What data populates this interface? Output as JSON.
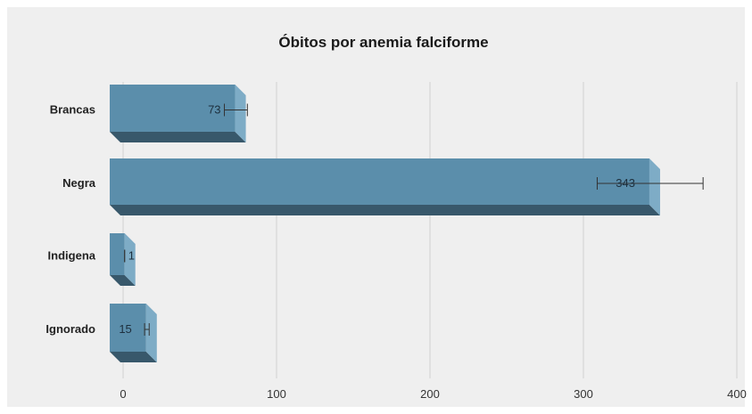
{
  "chart_data": {
    "type": "bar",
    "orientation": "horizontal",
    "title": "Óbitos por anemia falciforme",
    "xlabel": "",
    "ylabel": "",
    "categories": [
      "Brancas",
      "Negra",
      "Indigena",
      "Ignorado"
    ],
    "values": [
      73,
      343,
      1,
      15
    ],
    "error_high": [
      81,
      378,
      1,
      17
    ],
    "error_low": [
      66,
      309,
      1,
      14
    ],
    "xlim": [
      0,
      400
    ],
    "xticks": [
      0,
      100,
      200,
      300,
      400
    ],
    "grid": true,
    "legend": "none",
    "colors": {
      "bar_front": "#5b8eab",
      "bar_side": "#7eacc6",
      "bar_bottom": "#38586b",
      "background": "#efefef"
    }
  }
}
